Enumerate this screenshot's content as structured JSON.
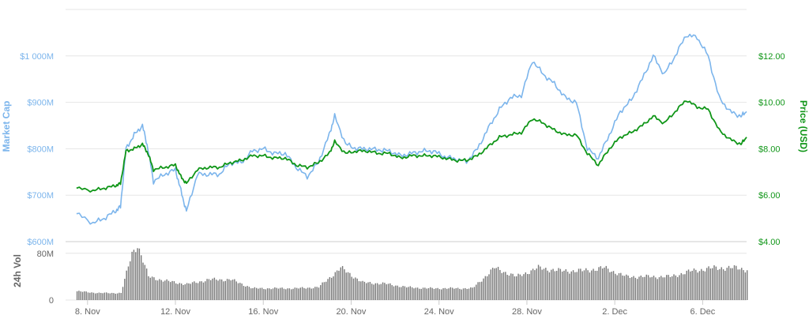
{
  "colors": {
    "market_cap": "#7cb5ec",
    "price": "#109618",
    "volume": "#777777",
    "grid": "#e6e6e6",
    "axis_line": "#cccccc",
    "x_tick_text": "#666666"
  },
  "chart_data": {
    "type": "line",
    "x_axis": {
      "start": "2017-11-07",
      "end": "2017-12-08",
      "tick_labels": [
        "8. Nov",
        "12. Nov",
        "16. Nov",
        "20. Nov",
        "24. Nov",
        "28. Nov",
        "2. Dec",
        "6. Dec"
      ]
    },
    "y_left": {
      "title": "Market Cap",
      "range": [
        600,
        1100
      ],
      "ticks": [
        600,
        700,
        800,
        900,
        1000
      ],
      "tick_labels": [
        "$600M",
        "$700M",
        "$800M",
        "$900M",
        "$1 000M"
      ]
    },
    "y_right": {
      "title": "Price (USD)",
      "range": [
        4,
        14
      ],
      "ticks": [
        4,
        6,
        8,
        10,
        12
      ],
      "tick_labels": [
        "$4.00",
        "$6.00",
        "$8.00",
        "$10.00",
        "$12.00"
      ]
    },
    "volume_axis": {
      "title": "24h Vol",
      "range": [
        0,
        100
      ],
      "ticks": [
        0,
        80
      ],
      "tick_labels": [
        "0",
        "80M"
      ]
    },
    "series": [
      {
        "name": "Market Cap",
        "axis": "left",
        "x": [
          "2017-11-07T12:00",
          "2017-11-08T06:00",
          "2017-11-08T18:00",
          "2017-11-09T06:00",
          "2017-11-09T12:00",
          "2017-11-09T18:00",
          "2017-11-10T03:00",
          "2017-11-10T12:00",
          "2017-11-10T18:00",
          "2017-11-11T00:00",
          "2017-11-11T12:00",
          "2017-11-12T00:00",
          "2017-11-12T06:00",
          "2017-11-12T12:00",
          "2017-11-13T00:00",
          "2017-11-13T12:00",
          "2017-11-14T00:00",
          "2017-11-14T12:00",
          "2017-11-15T00:00",
          "2017-11-15T12:00",
          "2017-11-16T00:00",
          "2017-11-16T12:00",
          "2017-11-17T00:00",
          "2017-11-17T12:00",
          "2017-11-18T00:00",
          "2017-11-18T12:00",
          "2017-11-19T00:00",
          "2017-11-19T06:00",
          "2017-11-19T18:00",
          "2017-11-20T06:00",
          "2017-11-20T18:00",
          "2017-11-21T06:00",
          "2017-11-21T18:00",
          "2017-11-22T06:00",
          "2017-11-22T18:00",
          "2017-11-23T06:00",
          "2017-11-23T18:00",
          "2017-11-24T06:00",
          "2017-11-24T18:00",
          "2017-11-25T06:00",
          "2017-11-25T18:00",
          "2017-11-26T06:00",
          "2017-11-26T18:00",
          "2017-11-27T06:00",
          "2017-11-27T18:00",
          "2017-11-28T06:00",
          "2017-11-28T18:00",
          "2017-11-29T06:00",
          "2017-11-29T18:00",
          "2017-11-30T06:00",
          "2017-11-30T18:00",
          "2017-12-01T06:00",
          "2017-12-01T18:00",
          "2017-12-02T06:00",
          "2017-12-02T18:00",
          "2017-12-03T06:00",
          "2017-12-03T18:00",
          "2017-12-04T06:00",
          "2017-12-04T18:00",
          "2017-12-05T06:00",
          "2017-12-05T18:00",
          "2017-12-06T06:00",
          "2017-12-06T18:00",
          "2017-12-07T06:00",
          "2017-12-07T18:00",
          "2017-12-08T00:00"
        ],
        "values": [
          660,
          640,
          650,
          665,
          675,
          800,
          830,
          850,
          800,
          730,
          745,
          755,
          710,
          665,
          745,
          745,
          745,
          770,
          770,
          795,
          800,
          790,
          790,
          760,
          740,
          770,
          830,
          870,
          810,
          800,
          800,
          798,
          795,
          785,
          790,
          795,
          795,
          783,
          778,
          772,
          800,
          845,
          885,
          910,
          915,
          990,
          960,
          940,
          910,
          900,
          800,
          780,
          830,
          880,
          905,
          950,
          1000,
          960,
          1000,
          1045,
          1040,
          1000,
          910,
          880,
          870,
          880
        ]
      },
      {
        "name": "Price (USD)",
        "axis": "right",
        "x": [
          "2017-11-07T12:00",
          "2017-11-08T06:00",
          "2017-11-08T18:00",
          "2017-11-09T06:00",
          "2017-11-09T12:00",
          "2017-11-09T18:00",
          "2017-11-10T03:00",
          "2017-11-10T12:00",
          "2017-11-10T18:00",
          "2017-11-11T00:00",
          "2017-11-11T12:00",
          "2017-11-12T00:00",
          "2017-11-12T06:00",
          "2017-11-12T12:00",
          "2017-11-13T00:00",
          "2017-11-13T12:00",
          "2017-11-14T00:00",
          "2017-11-14T12:00",
          "2017-11-15T00:00",
          "2017-11-15T12:00",
          "2017-11-16T00:00",
          "2017-11-16T12:00",
          "2017-11-17T00:00",
          "2017-11-17T12:00",
          "2017-11-18T00:00",
          "2017-11-18T12:00",
          "2017-11-19T00:00",
          "2017-11-19T06:00",
          "2017-11-19T18:00",
          "2017-11-20T06:00",
          "2017-11-20T18:00",
          "2017-11-21T06:00",
          "2017-11-21T18:00",
          "2017-11-22T06:00",
          "2017-11-22T18:00",
          "2017-11-23T06:00",
          "2017-11-23T18:00",
          "2017-11-24T06:00",
          "2017-11-24T18:00",
          "2017-11-25T06:00",
          "2017-11-25T18:00",
          "2017-11-26T06:00",
          "2017-11-26T18:00",
          "2017-11-27T06:00",
          "2017-11-27T18:00",
          "2017-11-28T06:00",
          "2017-11-28T18:00",
          "2017-11-29T06:00",
          "2017-11-29T18:00",
          "2017-11-30T06:00",
          "2017-11-30T18:00",
          "2017-12-01T06:00",
          "2017-12-01T18:00",
          "2017-12-02T06:00",
          "2017-12-02T18:00",
          "2017-12-03T06:00",
          "2017-12-03T18:00",
          "2017-12-04T06:00",
          "2017-12-04T18:00",
          "2017-12-05T06:00",
          "2017-12-05T18:00",
          "2017-12-06T06:00",
          "2017-12-06T18:00",
          "2017-12-07T06:00",
          "2017-12-07T18:00",
          "2017-12-08T00:00"
        ],
        "values": [
          6.3,
          6.2,
          6.3,
          6.4,
          6.5,
          7.9,
          8.0,
          8.2,
          7.8,
          7.1,
          7.2,
          7.3,
          6.8,
          6.5,
          7.1,
          7.2,
          7.2,
          7.4,
          7.5,
          7.7,
          7.7,
          7.6,
          7.6,
          7.3,
          7.2,
          7.4,
          7.8,
          8.3,
          7.8,
          7.9,
          7.9,
          7.8,
          7.8,
          7.6,
          7.7,
          7.7,
          7.7,
          7.6,
          7.5,
          7.5,
          7.7,
          8.1,
          8.5,
          8.6,
          8.7,
          9.3,
          9.1,
          8.8,
          8.6,
          8.6,
          7.8,
          7.3,
          8.0,
          8.5,
          8.7,
          9.0,
          9.4,
          9.1,
          9.6,
          10.1,
          9.8,
          9.7,
          8.8,
          8.4,
          8.2,
          8.5
        ]
      }
    ],
    "volume": {
      "x": [
        "2017-11-07T12:00",
        "2017-11-08T12:00",
        "2017-11-09T12:00",
        "2017-11-10T00:00",
        "2017-11-10T06:00",
        "2017-11-10T18:00",
        "2017-11-11T12:00",
        "2017-11-12T12:00",
        "2017-11-13T12:00",
        "2017-11-14T12:00",
        "2017-11-15T12:00",
        "2017-11-16T12:00",
        "2017-11-17T12:00",
        "2017-11-18T12:00",
        "2017-11-19T12:00",
        "2017-11-20T12:00",
        "2017-11-21T12:00",
        "2017-11-22T12:00",
        "2017-11-23T12:00",
        "2017-11-24T12:00",
        "2017-11-25T12:00",
        "2017-11-26T12:00",
        "2017-11-27T12:00",
        "2017-11-28T12:00",
        "2017-11-29T12:00",
        "2017-11-30T12:00",
        "2017-12-01T12:00",
        "2017-12-02T12:00",
        "2017-12-03T12:00",
        "2017-12-04T12:00",
        "2017-12-05T12:00",
        "2017-12-06T12:00",
        "2017-12-07T12:00",
        "2017-12-08T00:00"
      ],
      "values": [
        15,
        12,
        12,
        80,
        95,
        40,
        33,
        27,
        35,
        35,
        20,
        20,
        20,
        22,
        55,
        30,
        28,
        22,
        20,
        20,
        20,
        55,
        40,
        55,
        50,
        50,
        55,
        40,
        40,
        40,
        50,
        55,
        55,
        52
      ]
    },
    "grid": true,
    "legend": "none"
  }
}
